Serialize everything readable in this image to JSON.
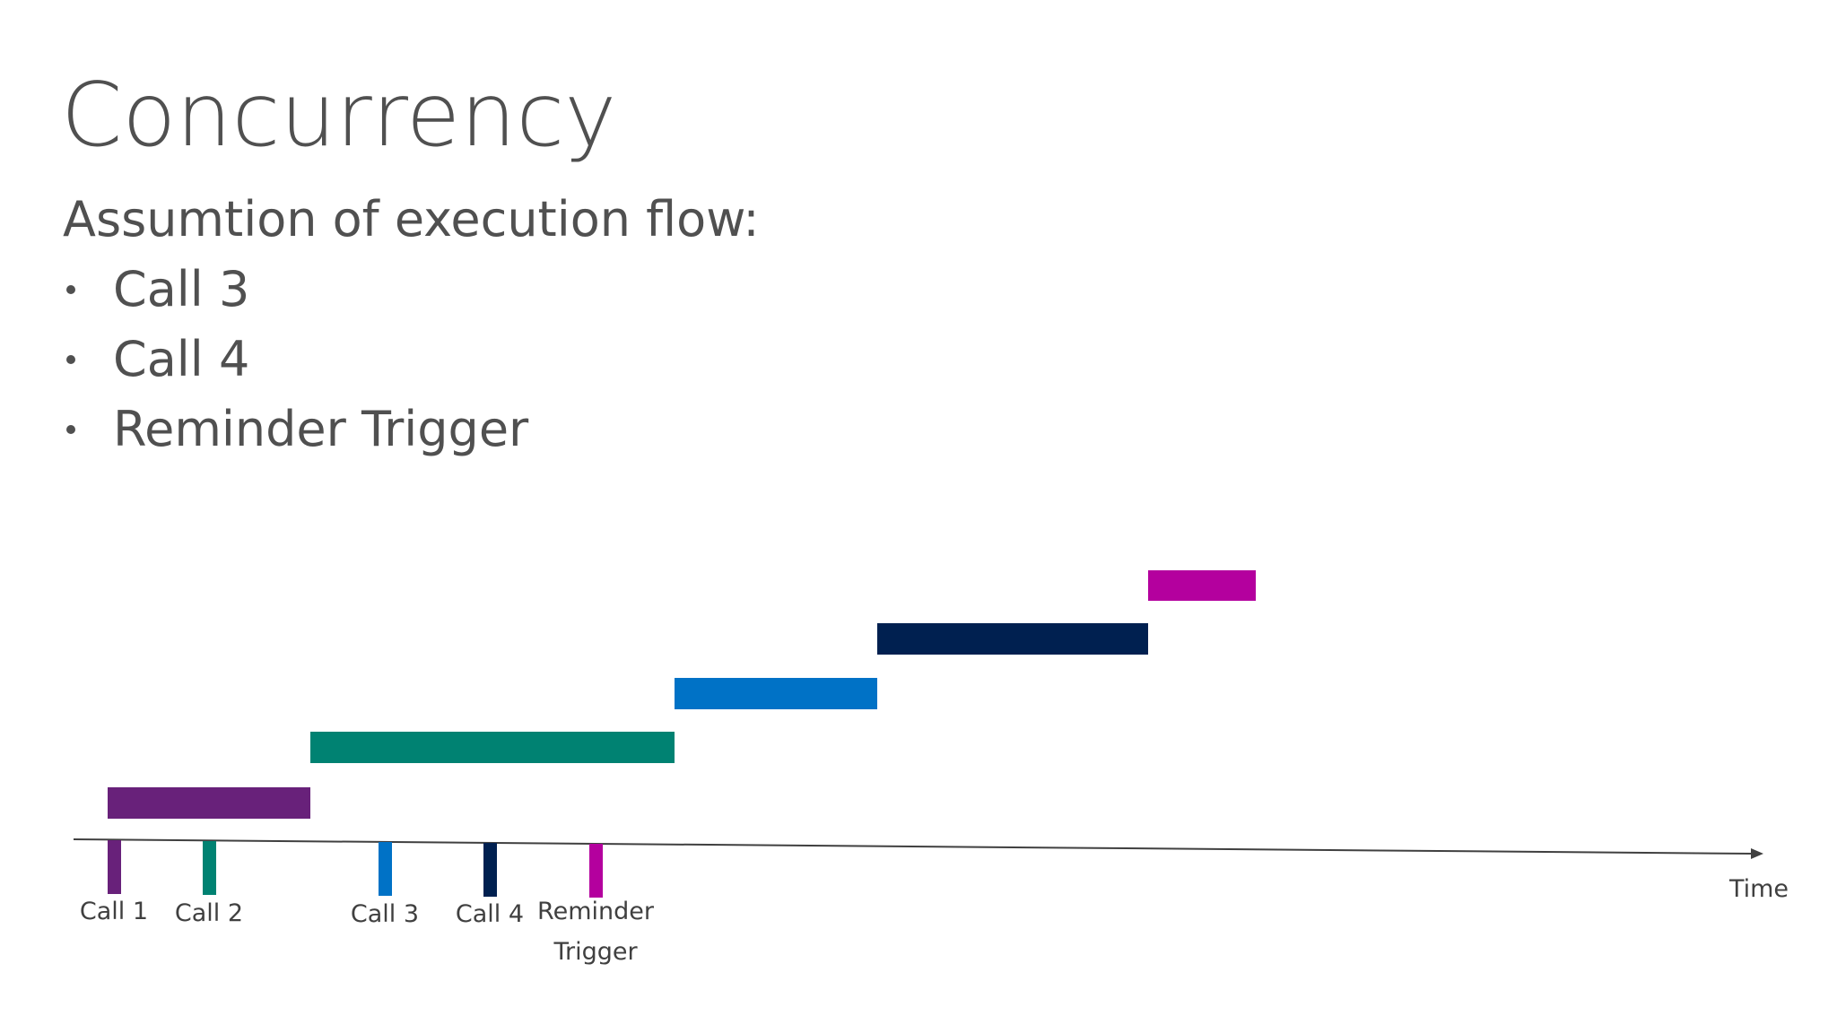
{
  "header": {
    "title": "Concurrency",
    "subtitle": "Assumtion of execution flow:"
  },
  "bullets": [
    "Call 3",
    "Call 4",
    "Reminder Trigger"
  ],
  "timeline": {
    "axis_label": "Time",
    "events": [
      {
        "label": "Call 1"
      },
      {
        "label": "Call 2"
      },
      {
        "label": "Call 3"
      },
      {
        "label": "Call 4"
      },
      {
        "label": [
          "Reminder",
          "Trigger"
        ]
      }
    ]
  }
}
